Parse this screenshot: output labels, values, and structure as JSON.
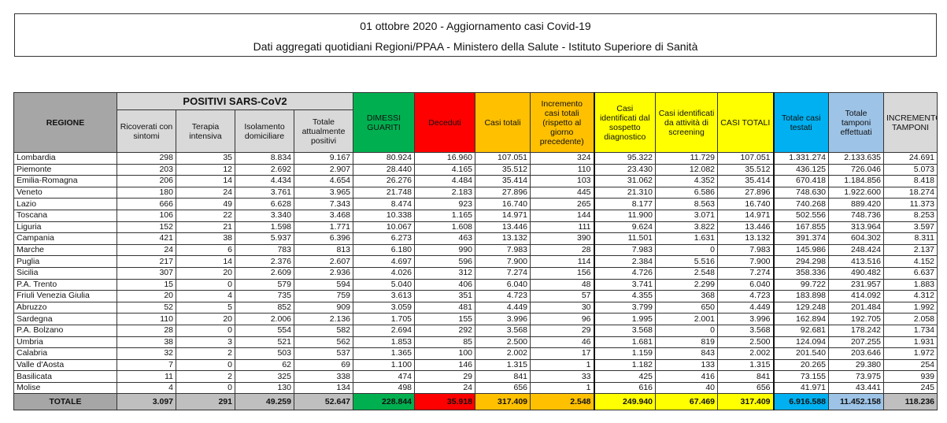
{
  "title": "01 ottobre 2020 - Aggiornamento casi Covid-19",
  "subtitle": "Dati aggregati quotidiani Regioni/PPAA - Ministero della Salute - Istituto Superiore di Sanità",
  "colors": {
    "regione": "#a6a6a6",
    "positivi": "#d9d9d9",
    "dimessi": "#00b050",
    "deceduti": "#ff0000",
    "casi_totali": "#ffc000",
    "screening": "#ffff00",
    "testati": "#00b0f0",
    "tamponi": "#9dc3e6",
    "incremento_tamponi": "#d9d9d9"
  },
  "headers": {
    "regione": "REGIONE",
    "positivi_group": "POSITIVI SARS-CoV2",
    "columns": [
      "Ricoverati con sintomi",
      "Terapia intensiva",
      "Isolamento domiciliare",
      "Totale attualmente positivi",
      "DIMESSI GUARITI",
      "Deceduti",
      "Casi totali",
      "Incremento casi totali (rispetto al giorno precedente)",
      "Casi identificati dal sospetto diagnostico",
      "Casi identificati da attività di screening",
      "CASI TOTALI",
      "Totale casi testati",
      "Totale tamponi effettuati",
      "INCREMENTO TAMPONI"
    ]
  },
  "rows": [
    [
      "Lombardia",
      "298",
      "35",
      "8.834",
      "9.167",
      "80.924",
      "16.960",
      "107.051",
      "324",
      "95.322",
      "11.729",
      "107.051",
      "1.331.274",
      "2.133.635",
      "24.691"
    ],
    [
      "Piemonte",
      "203",
      "12",
      "2.692",
      "2.907",
      "28.440",
      "4.165",
      "35.512",
      "110",
      "23.430",
      "12.082",
      "35.512",
      "436.125",
      "726.046",
      "5.073"
    ],
    [
      "Emilia-Romagna",
      "206",
      "14",
      "4.434",
      "4.654",
      "26.276",
      "4.484",
      "35.414",
      "103",
      "31.062",
      "4.352",
      "35.414",
      "670.418",
      "1.184.856",
      "8.418"
    ],
    [
      "Veneto",
      "180",
      "24",
      "3.761",
      "3.965",
      "21.748",
      "2.183",
      "27.896",
      "445",
      "21.310",
      "6.586",
      "27.896",
      "748.630",
      "1.922.600",
      "18.274"
    ],
    [
      "Lazio",
      "666",
      "49",
      "6.628",
      "7.343",
      "8.474",
      "923",
      "16.740",
      "265",
      "8.177",
      "8.563",
      "16.740",
      "740.268",
      "889.420",
      "11.373"
    ],
    [
      "Toscana",
      "106",
      "22",
      "3.340",
      "3.468",
      "10.338",
      "1.165",
      "14.971",
      "144",
      "11.900",
      "3.071",
      "14.971",
      "502.556",
      "748.736",
      "8.253"
    ],
    [
      "Liguria",
      "152",
      "21",
      "1.598",
      "1.771",
      "10.067",
      "1.608",
      "13.446",
      "111",
      "9.624",
      "3.822",
      "13.446",
      "167.855",
      "313.964",
      "3.597"
    ],
    [
      "Campania",
      "421",
      "38",
      "5.937",
      "6.396",
      "6.273",
      "463",
      "13.132",
      "390",
      "11.501",
      "1.631",
      "13.132",
      "391.374",
      "604.302",
      "8.311"
    ],
    [
      "Marche",
      "24",
      "6",
      "783",
      "813",
      "6.180",
      "990",
      "7.983",
      "28",
      "7.983",
      "0",
      "7.983",
      "145.986",
      "248.424",
      "2.137"
    ],
    [
      "Puglia",
      "217",
      "14",
      "2.376",
      "2.607",
      "4.697",
      "596",
      "7.900",
      "114",
      "2.384",
      "5.516",
      "7.900",
      "294.298",
      "413.516",
      "4.152"
    ],
    [
      "Sicilia",
      "307",
      "20",
      "2.609",
      "2.936",
      "4.026",
      "312",
      "7.274",
      "156",
      "4.726",
      "2.548",
      "7.274",
      "358.336",
      "490.482",
      "6.637"
    ],
    [
      "P.A. Trento",
      "15",
      "0",
      "579",
      "594",
      "5.040",
      "406",
      "6.040",
      "48",
      "3.741",
      "2.299",
      "6.040",
      "99.722",
      "231.957",
      "1.883"
    ],
    [
      "Friuli Venezia Giulia",
      "20",
      "4",
      "735",
      "759",
      "3.613",
      "351",
      "4.723",
      "57",
      "4.355",
      "368",
      "4.723",
      "183.898",
      "414.092",
      "4.312"
    ],
    [
      "Abruzzo",
      "52",
      "5",
      "852",
      "909",
      "3.059",
      "481",
      "4.449",
      "30",
      "3.799",
      "650",
      "4.449",
      "129.248",
      "201.484",
      "1.992"
    ],
    [
      "Sardegna",
      "110",
      "20",
      "2.006",
      "2.136",
      "1.705",
      "155",
      "3.996",
      "96",
      "1.995",
      "2.001",
      "3.996",
      "162.894",
      "192.705",
      "2.058"
    ],
    [
      "P.A. Bolzano",
      "28",
      "0",
      "554",
      "582",
      "2.694",
      "292",
      "3.568",
      "29",
      "3.568",
      "0",
      "3.568",
      "92.681",
      "178.242",
      "1.734"
    ],
    [
      "Umbria",
      "38",
      "3",
      "521",
      "562",
      "1.853",
      "85",
      "2.500",
      "46",
      "1.681",
      "819",
      "2.500",
      "124.094",
      "207.255",
      "1.931"
    ],
    [
      "Calabria",
      "32",
      "2",
      "503",
      "537",
      "1.365",
      "100",
      "2.002",
      "17",
      "1.159",
      "843",
      "2.002",
      "201.540",
      "203.646",
      "1.972"
    ],
    [
      "Valle d'Aosta",
      "7",
      "0",
      "62",
      "69",
      "1.100",
      "146",
      "1.315",
      "1",
      "1.182",
      "133",
      "1.315",
      "20.265",
      "29.380",
      "254"
    ],
    [
      "Basilicata",
      "11",
      "2",
      "325",
      "338",
      "474",
      "29",
      "841",
      "33",
      "425",
      "416",
      "841",
      "73.155",
      "73.975",
      "939"
    ],
    [
      "Molise",
      "4",
      "0",
      "130",
      "134",
      "498",
      "24",
      "656",
      "1",
      "616",
      "40",
      "656",
      "41.971",
      "43.441",
      "245"
    ]
  ],
  "totals": [
    "TOTALE",
    "3.097",
    "291",
    "49.259",
    "52.647",
    "228.844",
    "35.918",
    "317.409",
    "2.548",
    "249.940",
    "67.469",
    "317.409",
    "6.916.588",
    "11.452.158",
    "118.236"
  ]
}
